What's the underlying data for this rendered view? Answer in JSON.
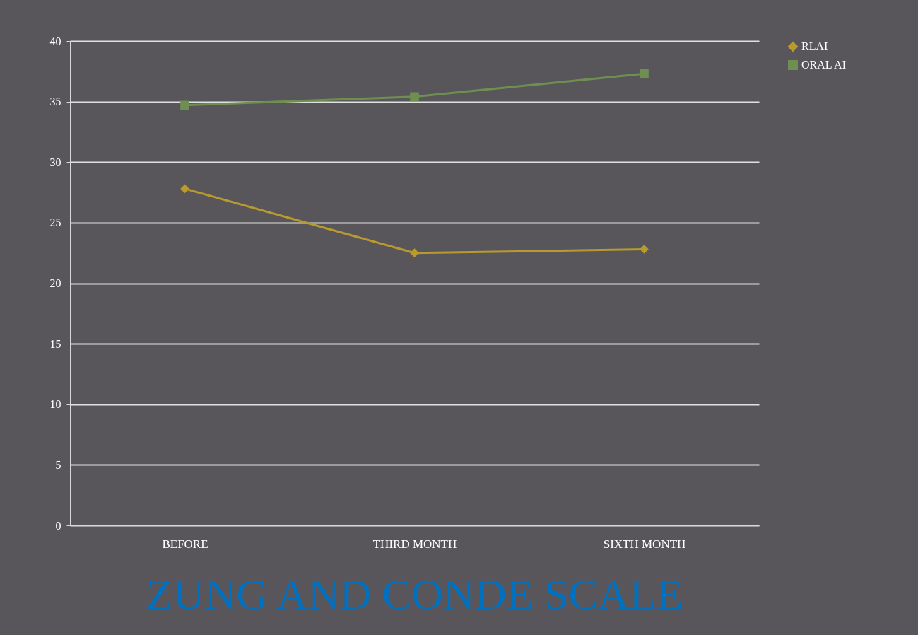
{
  "chart_data": {
    "type": "line",
    "title": "ZUNG AND CONDE SCALE",
    "categories": [
      "BEFORE",
      "THIRD MONTH",
      "SIXTH MONTH"
    ],
    "series": [
      {
        "name": "RLAI",
        "color": "#b89a2e",
        "marker": "diamond",
        "values": [
          27.8,
          22.5,
          22.8
        ]
      },
      {
        "name": "ORAL AI",
        "color": "#6f8f52",
        "marker": "square",
        "values": [
          34.7,
          35.4,
          37.3
        ]
      }
    ],
    "ylim": [
      0,
      40
    ],
    "yticks": [
      0,
      5,
      10,
      15,
      20,
      25,
      30,
      35,
      40
    ],
    "grid": "y",
    "legend": "right"
  }
}
